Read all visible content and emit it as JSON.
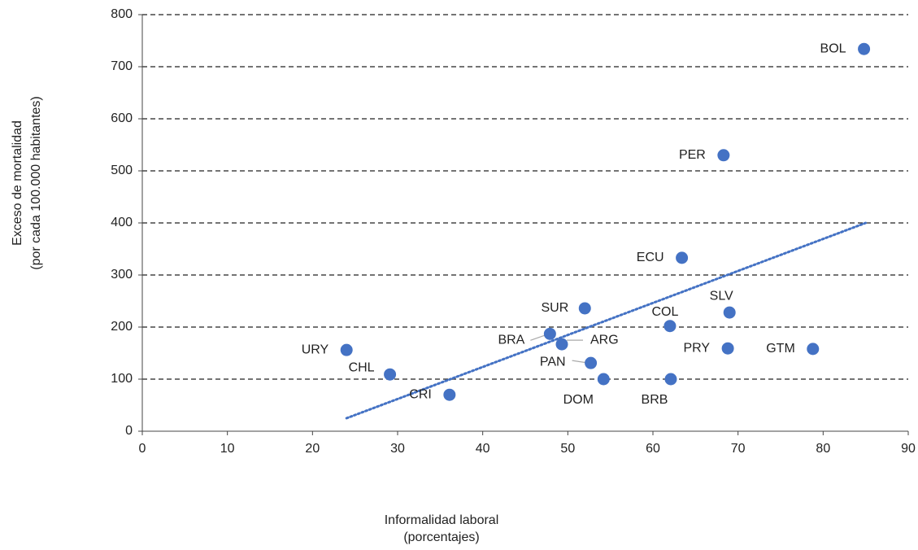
{
  "chart_data": {
    "type": "scatter",
    "x_label": [
      "Informalidad laboral",
      "(porcentajes)"
    ],
    "y_label": [
      "Exceso de mortalidad",
      "(por cada 100.000 habitantes)"
    ],
    "labels": [
      "BOL",
      "PER",
      "ECU",
      "SLV",
      "SUR",
      "COL",
      "BRA",
      "ARG",
      "PRY",
      "GTM",
      "URY",
      "PAN",
      "CHL",
      "DOM",
      "BRB",
      "CRI"
    ],
    "x": [
      84.8,
      68.3,
      63.4,
      69.0,
      52.0,
      62.0,
      47.9,
      49.3,
      68.8,
      78.8,
      24.0,
      52.7,
      29.1,
      54.2,
      62.1,
      36.1
    ],
    "y": [
      734,
      530,
      333,
      228,
      236,
      202,
      187,
      167,
      159,
      158,
      156,
      131,
      109,
      100,
      100,
      70
    ],
    "color": "#4472c4",
    "trendline": {
      "x": [
        24,
        85
      ],
      "y": [
        25,
        400
      ],
      "color": "#4472c4"
    },
    "xlim": [
      0,
      90
    ],
    "xticks": [
      0,
      10,
      20,
      30,
      40,
      50,
      60,
      70,
      80,
      90
    ],
    "ylim": [
      0,
      800
    ],
    "yticks": [
      0,
      100,
      200,
      300,
      400,
      500,
      600,
      700,
      800
    ],
    "grid": true
  }
}
